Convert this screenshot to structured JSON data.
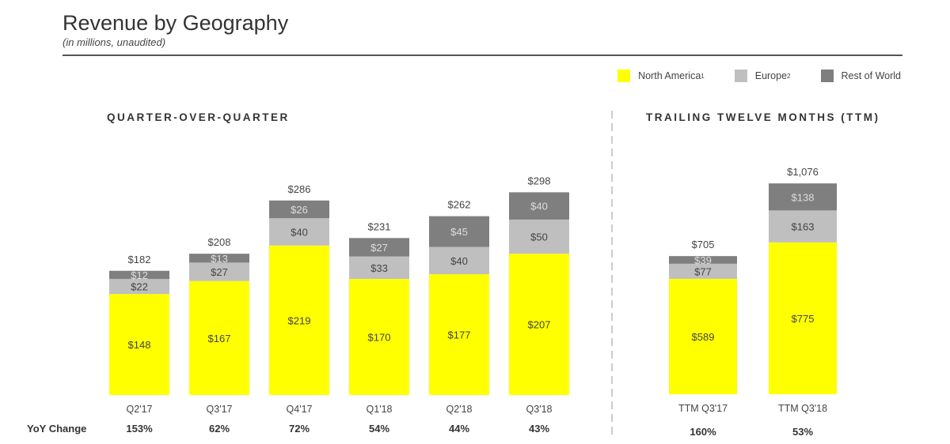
{
  "header": {
    "title": "Revenue by Geography",
    "subtitle": "(in millions, unaudited)"
  },
  "legend": [
    {
      "label": "North America",
      "sup": "1",
      "color": "#ffff00"
    },
    {
      "label": "Europe",
      "sup": "2",
      "color": "#bfbfbf"
    },
    {
      "label": "Rest of World",
      "sup": "",
      "color": "#7f7f7f"
    }
  ],
  "chart_data": [
    {
      "type": "bar",
      "stacked": true,
      "title": "QUARTER-OVER-QUARTER",
      "categories": [
        "Q2'17",
        "Q3'17",
        "Q4'17",
        "Q1'18",
        "Q2'18",
        "Q3'18"
      ],
      "series": [
        {
          "name": "North America",
          "values": [
            148,
            167,
            219,
            170,
            177,
            207
          ]
        },
        {
          "name": "Europe",
          "values": [
            22,
            27,
            40,
            33,
            40,
            50
          ]
        },
        {
          "name": "Rest of World",
          "values": [
            12,
            13,
            26,
            27,
            45,
            40
          ]
        }
      ],
      "totals": [
        "$182",
        "$208",
        "$286",
        "$231",
        "$262",
        "$298"
      ],
      "yoy_label": "YoY Change",
      "yoy": [
        "153%",
        "62%",
        "72%",
        "54%",
        "44%",
        "43%"
      ]
    },
    {
      "type": "bar",
      "stacked": true,
      "title": "TRAILING TWELVE MONTHS (TTM)",
      "categories": [
        "TTM Q3'17",
        "TTM Q3'18"
      ],
      "series": [
        {
          "name": "North America",
          "values": [
            589,
            775
          ]
        },
        {
          "name": "Europe",
          "values": [
            77,
            163
          ]
        },
        {
          "name": "Rest of World",
          "values": [
            39,
            138
          ]
        }
      ],
      "totals": [
        "$705",
        "$1,076"
      ],
      "yoy": [
        "160%",
        "53%"
      ]
    }
  ]
}
